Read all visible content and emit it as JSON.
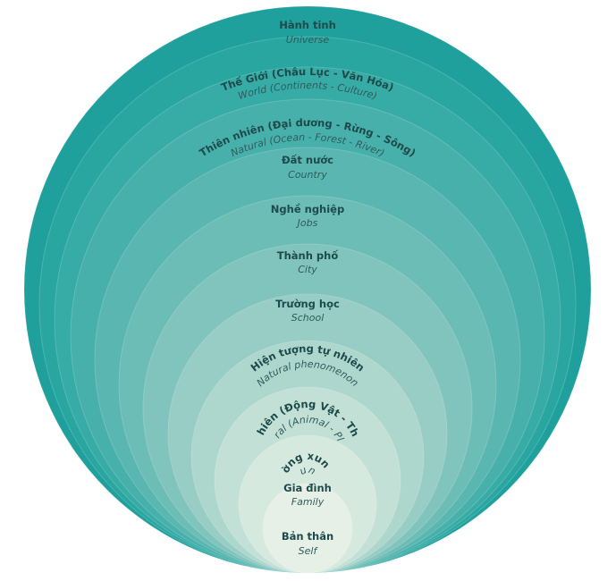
{
  "diagram": {
    "layers": [
      {
        "vi": "Hành tinh",
        "en": "Universe",
        "color": "#1fa09c"
      },
      {
        "vi": "Thế Giới (Châu Lục - Văn Hóa)",
        "en": "World (Continents - Culture)",
        "color": "#2aa6a1"
      },
      {
        "vi": "Thiên nhiên (Đại dương - Rừng - Sông)",
        "en": "Natural (Ocean - Forest - River)",
        "color": "#37aba6"
      },
      {
        "vi": "Đất nước",
        "en": "Country",
        "color": "#48b0ab"
      },
      {
        "vi": "Nghề nghiệp",
        "en": "Jobs",
        "color": "#59b6b1"
      },
      {
        "vi": "Thành phố",
        "en": "City",
        "color": "#6cbdb6"
      },
      {
        "vi": "Trường học",
        "en": "School",
        "color": "#81c4bd"
      },
      {
        "vi": "Hiện tượng tự nhiên",
        "en": "Natural phenomenon",
        "color": "#97cdc4"
      },
      {
        "vi": "Thiên nhiên (Động Vật - Thực Vật)",
        "en": "Natural (Animal - Plant)",
        "color": "#add7cd"
      },
      {
        "vi": "Môi trường xung quanh",
        "en": "Surroundings",
        "color": "#c3e0d6"
      },
      {
        "vi": "Gia đình",
        "en": "Family",
        "color": "#d6e9df"
      },
      {
        "vi": "Bản thân",
        "en": "Self",
        "color": "#e6f0e6"
      }
    ]
  }
}
